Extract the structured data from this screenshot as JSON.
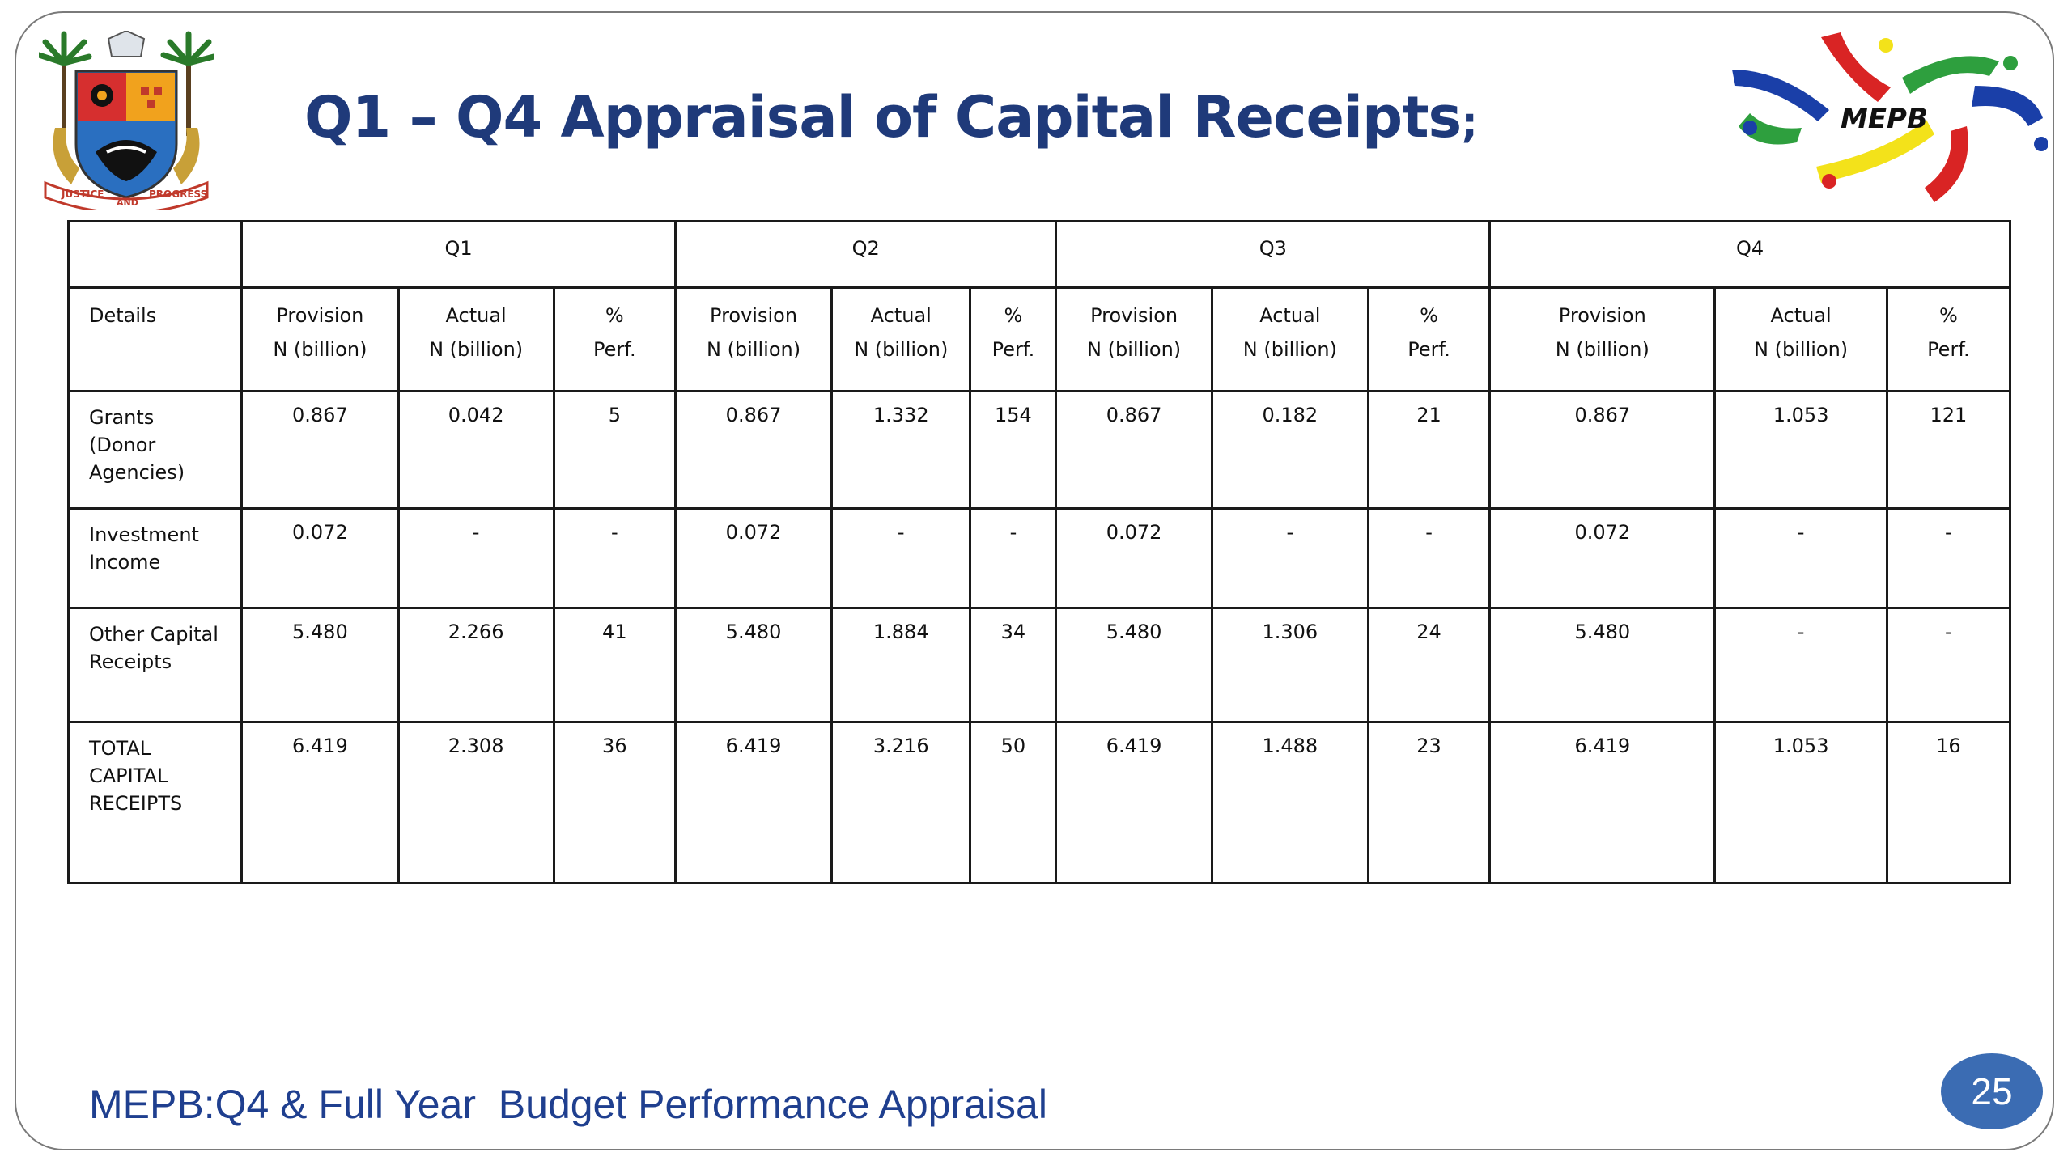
{
  "slide": {
    "title_main": "Q1 – Q4 Appraisal of Capital Receipts",
    "title_end": ";",
    "footer": "MEPB:Q4 & Full Year  Budget Performance Appraisal",
    "page_number": "25"
  },
  "logos": {
    "crest_icon": "coat-of-arms-crest",
    "crest_motto_left": "JUSTICE",
    "crest_motto_mid": "AND",
    "crest_motto_right": "PROGRESS",
    "mepb_text": "MEPB"
  },
  "colors": {
    "title": "#1f3a7a",
    "footer": "#1f3f8f",
    "badge": "#3b6cb3"
  },
  "table": {
    "quarters": [
      "Q1",
      "Q2",
      "Q3",
      "Q4"
    ],
    "details_header": "Details",
    "col_provision_1": "Provision",
    "col_provision_2": "N (billion)",
    "col_actual_1": "Actual",
    "col_actual_2": "N (billion)",
    "col_perf_1": "%",
    "col_perf_2": "Perf.",
    "rows": [
      {
        "label_lines": [
          "Grants",
          "(Donor",
          "Agencies)"
        ],
        "values": [
          "0.867",
          "0.042",
          "5",
          "0.867",
          "1.332",
          "154",
          "0.867",
          "0.182",
          "21",
          "0.867",
          "1.053",
          "121"
        ]
      },
      {
        "label_lines": [
          "Investment",
          "Income"
        ],
        "values": [
          "0.072",
          "-",
          "-",
          "0.072",
          "-",
          "-",
          "0.072",
          "-",
          "-",
          "0.072",
          "-",
          "-"
        ]
      },
      {
        "label_lines": [
          "Other Capital",
          "Receipts"
        ],
        "values": [
          "5.480",
          "2.266",
          "41",
          "5.480",
          "1.884",
          "34",
          "5.480",
          "1.306",
          "24",
          "5.480",
          "-",
          "-"
        ]
      },
      {
        "label_lines": [
          "TOTAL",
          "CAPITAL",
          "RECEIPTS"
        ],
        "values": [
          "6.419",
          "2.308",
          "36",
          "6.419",
          "3.216",
          "50",
          "6.419",
          "1.488",
          "23",
          "6.419",
          "1.053",
          "16"
        ]
      }
    ]
  }
}
